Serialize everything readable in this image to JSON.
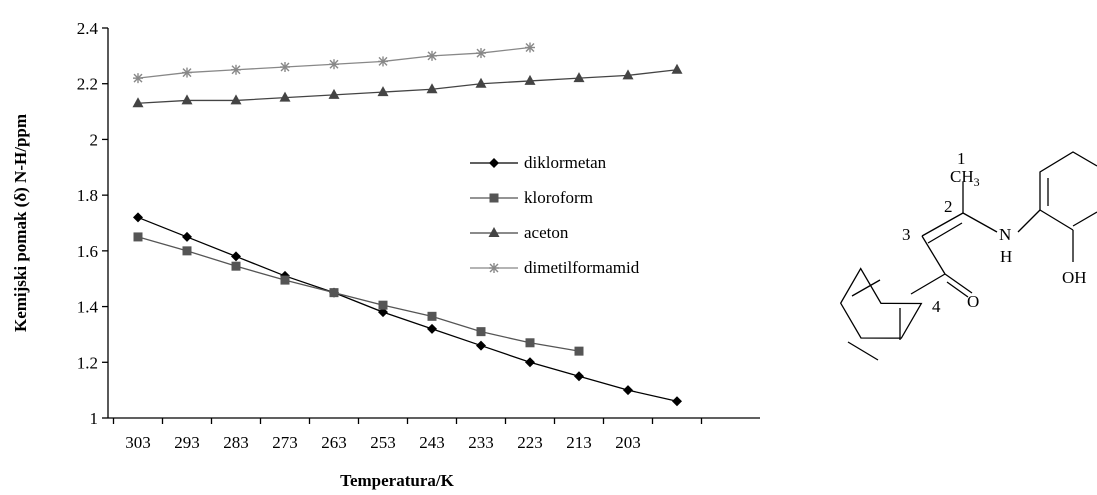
{
  "chart_data": {
    "type": "line",
    "xlabel": "Temperatura/K",
    "ylabel": "Kemijski pomak (δ) N-H/ppm",
    "categories": [
      "303",
      "293",
      "283",
      "273",
      "263",
      "253",
      "243",
      "233",
      "223",
      "213",
      "203",
      ""
    ],
    "ylim": [
      1,
      2.4
    ],
    "yticks": [
      "1",
      "1.2",
      "1.4",
      "1.6",
      "1.8",
      "2",
      "2.2",
      "2.4"
    ],
    "grid": false,
    "legend_position": "center-right",
    "series": [
      {
        "name": "diklormetan",
        "marker": "diamond",
        "values": [
          1.72,
          1.65,
          1.58,
          1.51,
          1.45,
          1.38,
          1.32,
          1.26,
          1.2,
          1.15,
          1.1,
          1.06
        ]
      },
      {
        "name": "kloroform",
        "marker": "square",
        "values": [
          1.65,
          1.6,
          1.545,
          1.495,
          1.45,
          1.405,
          1.365,
          1.31,
          1.27,
          1.24,
          null,
          null
        ]
      },
      {
        "name": "aceton",
        "marker": "triangle",
        "values": [
          2.13,
          2.14,
          2.14,
          2.15,
          2.16,
          2.17,
          2.18,
          2.2,
          2.21,
          2.22,
          2.23,
          2.25
        ]
      },
      {
        "name": "dimetilformamid",
        "marker": "star",
        "values": [
          2.22,
          2.24,
          2.25,
          2.26,
          2.27,
          2.28,
          2.3,
          2.31,
          2.33,
          null,
          null,
          null
        ]
      }
    ],
    "series_colors": [
      "#000000",
      "#555555",
      "#444444",
      "#888888"
    ]
  },
  "molecule": {
    "atom_labels": {
      "c1": "1",
      "ch": "CH",
      "ch_sub": "3",
      "c2": "2",
      "c3": "3",
      "c4": "4",
      "n": "N",
      "h": "H",
      "o": "O",
      "oh": "OH"
    }
  }
}
